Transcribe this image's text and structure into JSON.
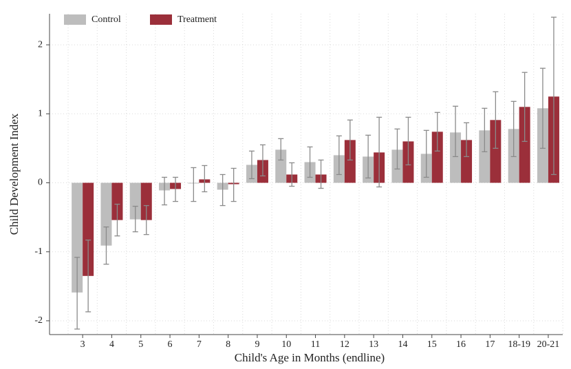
{
  "chart_data": {
    "type": "bar",
    "x_label": "Child's Age in Months (endline)",
    "y_label": "Child Development Index",
    "categories": [
      "3",
      "4",
      "5",
      "6",
      "7",
      "8",
      "9",
      "10",
      "11",
      "12",
      "13",
      "14",
      "15",
      "16",
      "17",
      "18-19",
      "20-21"
    ],
    "series": [
      {
        "name": "Control",
        "color": "#bdbdbd",
        "values": [
          -1.59,
          -0.91,
          -0.53,
          -0.11,
          -0.01,
          -0.1,
          0.26,
          0.48,
          0.3,
          0.4,
          0.38,
          0.48,
          0.42,
          0.73,
          0.76,
          0.78,
          1.08
        ],
        "lower": [
          -2.12,
          -1.18,
          -0.71,
          -0.32,
          -0.27,
          -0.33,
          0.06,
          0.33,
          0.08,
          0.12,
          0.07,
          0.2,
          0.08,
          0.38,
          0.45,
          0.38,
          0.5
        ],
        "upper": [
          -1.08,
          -0.64,
          -0.34,
          0.08,
          0.22,
          0.12,
          0.46,
          0.64,
          0.52,
          0.68,
          0.69,
          0.78,
          0.76,
          1.11,
          1.08,
          1.18,
          1.66
        ]
      },
      {
        "name": "Treatment",
        "color": "#9b2f3a",
        "values": [
          -1.35,
          -0.54,
          -0.54,
          -0.09,
          0.05,
          -0.02,
          0.33,
          0.12,
          0.12,
          0.62,
          0.44,
          0.6,
          0.74,
          0.62,
          0.91,
          1.1,
          1.25
        ],
        "lower": [
          -1.87,
          -0.77,
          -0.75,
          -0.27,
          -0.13,
          -0.27,
          0.1,
          -0.05,
          -0.08,
          0.33,
          -0.06,
          0.26,
          0.46,
          0.38,
          0.5,
          0.6,
          0.12
        ],
        "upper": [
          -0.83,
          -0.31,
          -0.33,
          0.08,
          0.25,
          0.21,
          0.55,
          0.29,
          0.33,
          0.91,
          0.95,
          0.95,
          1.02,
          0.87,
          1.32,
          1.6,
          2.4
        ]
      }
    ],
    "error_color": "#8a8a8a",
    "ylim": [
      -2.2,
      2.45
    ],
    "yticks": [
      -2,
      -1,
      0,
      1,
      2
    ],
    "grid": true
  }
}
